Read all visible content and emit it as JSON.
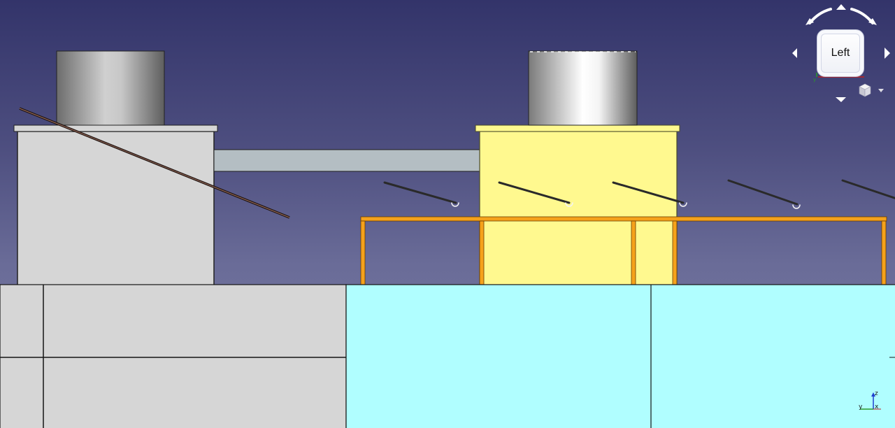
{
  "view": {
    "current_view_label": "Left",
    "axis_labels": {
      "z": "z",
      "y": "y",
      "x": "x"
    }
  },
  "colors": {
    "background_top": "#33346a",
    "background_bottom": "#7a7ca4",
    "gray_box": "#d6d6d6",
    "selected_yellow": "#fff98f",
    "frame_orange": "#f5a21b",
    "cyan_block": "#b0feff",
    "pipe_gray": "#b4bec3"
  },
  "icons": {
    "rotate_left": "rotate-ccw-icon",
    "rotate_right": "rotate-cw-icon",
    "arrow_up": "arrow-up-icon",
    "arrow_down": "arrow-down-icon",
    "arrow_left": "arrow-left-icon",
    "arrow_right": "arrow-right-icon",
    "view_menu": "cube-menu-icon"
  }
}
